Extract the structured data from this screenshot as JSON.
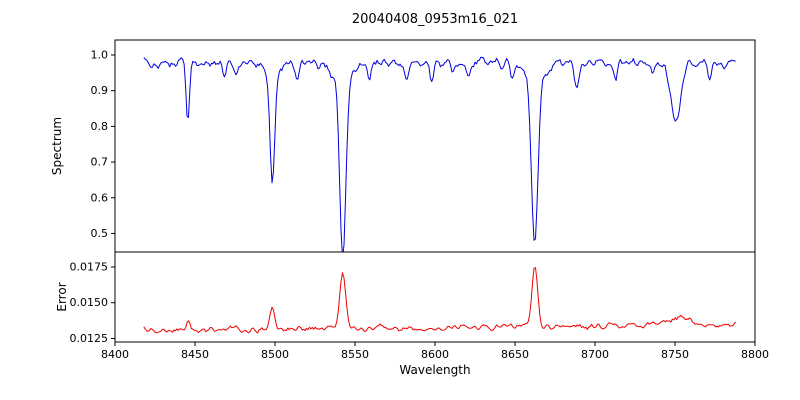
{
  "chart": {
    "title": "20040408_0953m16_021",
    "xlabel": "Wavelength",
    "background": "#ffffff",
    "axis_color": "#000000",
    "xlim": [
      8400,
      8800
    ],
    "xticks": [
      8400,
      8450,
      8500,
      8550,
      8600,
      8650,
      8700,
      8750,
      8800
    ],
    "xtick_labels": [
      "8400",
      "8450",
      "8500",
      "8550",
      "8600",
      "8650",
      "8700",
      "8750",
      "8800"
    ],
    "grid": false,
    "legend": "none"
  },
  "chart_data": [
    {
      "type": "line",
      "name": "spectrum",
      "ylabel": "Spectrum",
      "color": "#0000dd",
      "ylim": [
        0.448,
        1.042
      ],
      "yticks": [
        0.5,
        0.6,
        0.7,
        0.8,
        0.9,
        1.0
      ],
      "ytick_labels": [
        "0.5",
        "0.6",
        "0.7",
        "0.8",
        "0.9",
        "1.0"
      ],
      "x_start": 8418,
      "x_end": 8788,
      "x_step": 0.9,
      "continuum": 0.978,
      "noise_sigma": 0.011,
      "noise_seed": 20040408,
      "absorption_lines": [
        {
          "c": 8445.5,
          "d": 0.155,
          "w": 1.1
        },
        {
          "c": 8468.0,
          "d": 0.045,
          "w": 1.1
        },
        {
          "c": 8476.0,
          "d": 0.035,
          "w": 1.0
        },
        {
          "c": 8498.3,
          "d": 0.295,
          "w": 1.5
        },
        {
          "c": 8498.3,
          "d": 0.04,
          "w": 5.0
        },
        {
          "c": 8514.0,
          "d": 0.05,
          "w": 1.1
        },
        {
          "c": 8542.4,
          "d": 0.49,
          "w": 1.9
        },
        {
          "c": 8542.4,
          "d": 0.06,
          "w": 6.0
        },
        {
          "c": 8559.0,
          "d": 0.035,
          "w": 1.0
        },
        {
          "c": 8582.0,
          "d": 0.04,
          "w": 1.0
        },
        {
          "c": 8598.0,
          "d": 0.045,
          "w": 1.0
        },
        {
          "c": 8611.0,
          "d": 0.03,
          "w": 1.0
        },
        {
          "c": 8621.0,
          "d": 0.035,
          "w": 1.0
        },
        {
          "c": 8648.0,
          "d": 0.03,
          "w": 1.0
        },
        {
          "c": 8662.3,
          "d": 0.46,
          "w": 1.9
        },
        {
          "c": 8662.3,
          "d": 0.055,
          "w": 6.0
        },
        {
          "c": 8688.5,
          "d": 0.065,
          "w": 1.4
        },
        {
          "c": 8713.0,
          "d": 0.035,
          "w": 1.0
        },
        {
          "c": 8736.0,
          "d": 0.03,
          "w": 1.0
        },
        {
          "c": 8750.5,
          "d": 0.16,
          "w": 3.2
        },
        {
          "c": 8772.0,
          "d": 0.04,
          "w": 1.0
        }
      ]
    },
    {
      "type": "line",
      "name": "error",
      "ylabel": "Error",
      "color": "#ee0000",
      "ylim": [
        0.01225,
        0.01855
      ],
      "yticks": [
        0.0125,
        0.015,
        0.0175
      ],
      "ytick_labels": [
        "0.0125",
        "0.0150",
        "0.0175"
      ],
      "x_start": 8418,
      "x_end": 8788,
      "x_step": 0.9,
      "baseline": 0.01305,
      "slope_total": 0.0004,
      "noise_sigma": 0.00016,
      "noise_seed": 953021,
      "peaks": [
        {
          "c": 8445.5,
          "a": 0.0007,
          "w": 1.3
        },
        {
          "c": 8498.3,
          "a": 0.0015,
          "w": 1.6
        },
        {
          "c": 8542.4,
          "a": 0.004,
          "w": 1.8
        },
        {
          "c": 8662.3,
          "a": 0.0043,
          "w": 1.8
        },
        {
          "c": 8750.5,
          "a": 0.0005,
          "w": 7.0
        }
      ]
    }
  ]
}
